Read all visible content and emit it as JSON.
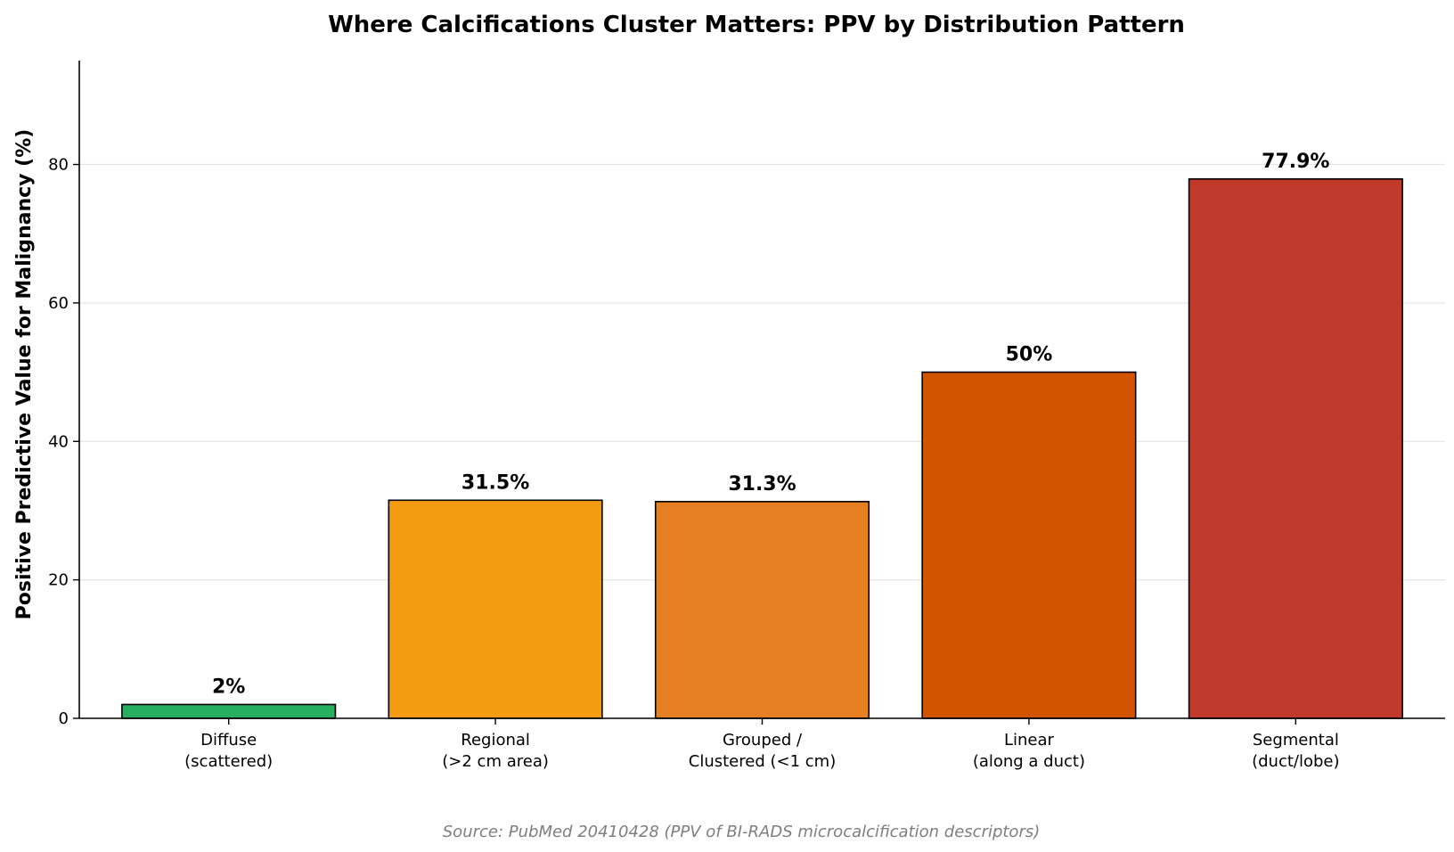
{
  "chart_data": {
    "type": "bar",
    "title": "Where Calcifications Cluster Matters: PPV by Distribution Pattern",
    "ylabel": "Positive Predictive Value for Malignancy (%)",
    "xlabel": "",
    "ylim": [
      0,
      95
    ],
    "yticks": [
      0,
      20,
      40,
      60,
      80
    ],
    "grid": "y",
    "categories": [
      [
        "Diffuse",
        "(scattered)"
      ],
      [
        "Regional",
        "(>2 cm area)"
      ],
      [
        "Grouped /",
        "Clustered (<1 cm)"
      ],
      [
        "Linear",
        "(along a duct)"
      ],
      [
        "Segmental",
        "(duct/lobe)"
      ]
    ],
    "values": [
      2,
      31.5,
      31.3,
      50,
      77.9
    ],
    "value_labels": [
      "2%",
      "31.5%",
      "31.3%",
      "50%",
      "77.9%"
    ],
    "colors": [
      "#27ae60",
      "#f39c12",
      "#e67e22",
      "#d35400",
      "#c0392b"
    ],
    "source": "Source: PubMed 20410428 (PPV of BI-RADS microcalcification descriptors)"
  }
}
